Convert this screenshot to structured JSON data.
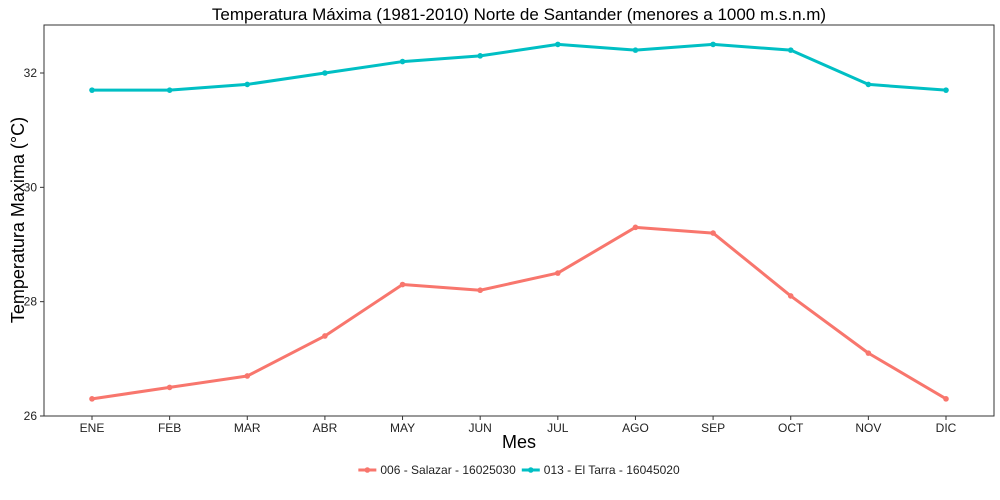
{
  "chart_data": {
    "type": "line",
    "title": "Temperatura Máxima (1981-2010) Norte de Santander (menores a 1000 m.s.n.m)",
    "xlabel": "Mes",
    "ylabel": "Temperatura Maxima (°C)",
    "categories": [
      "ENE",
      "FEB",
      "MAR",
      "ABR",
      "MAY",
      "JUN",
      "JUL",
      "AGO",
      "SEP",
      "OCT",
      "NOV",
      "DIC"
    ],
    "ylim": [
      26,
      32.8
    ],
    "yticks": [
      26,
      28,
      30,
      32
    ],
    "grid": false,
    "legend_position": "bottom",
    "series": [
      {
        "name": "006 - Salazar - 16025030",
        "color": "#F8766D",
        "values": [
          26.3,
          26.5,
          26.7,
          27.4,
          28.3,
          28.2,
          28.5,
          29.3,
          29.2,
          28.1,
          27.1,
          26.3
        ]
      },
      {
        "name": "013 - El Tarra - 16045020",
        "color": "#00BFC4",
        "values": [
          31.7,
          31.7,
          31.8,
          32.0,
          32.2,
          32.3,
          32.5,
          32.4,
          32.5,
          32.4,
          31.8,
          31.7
        ]
      }
    ]
  }
}
